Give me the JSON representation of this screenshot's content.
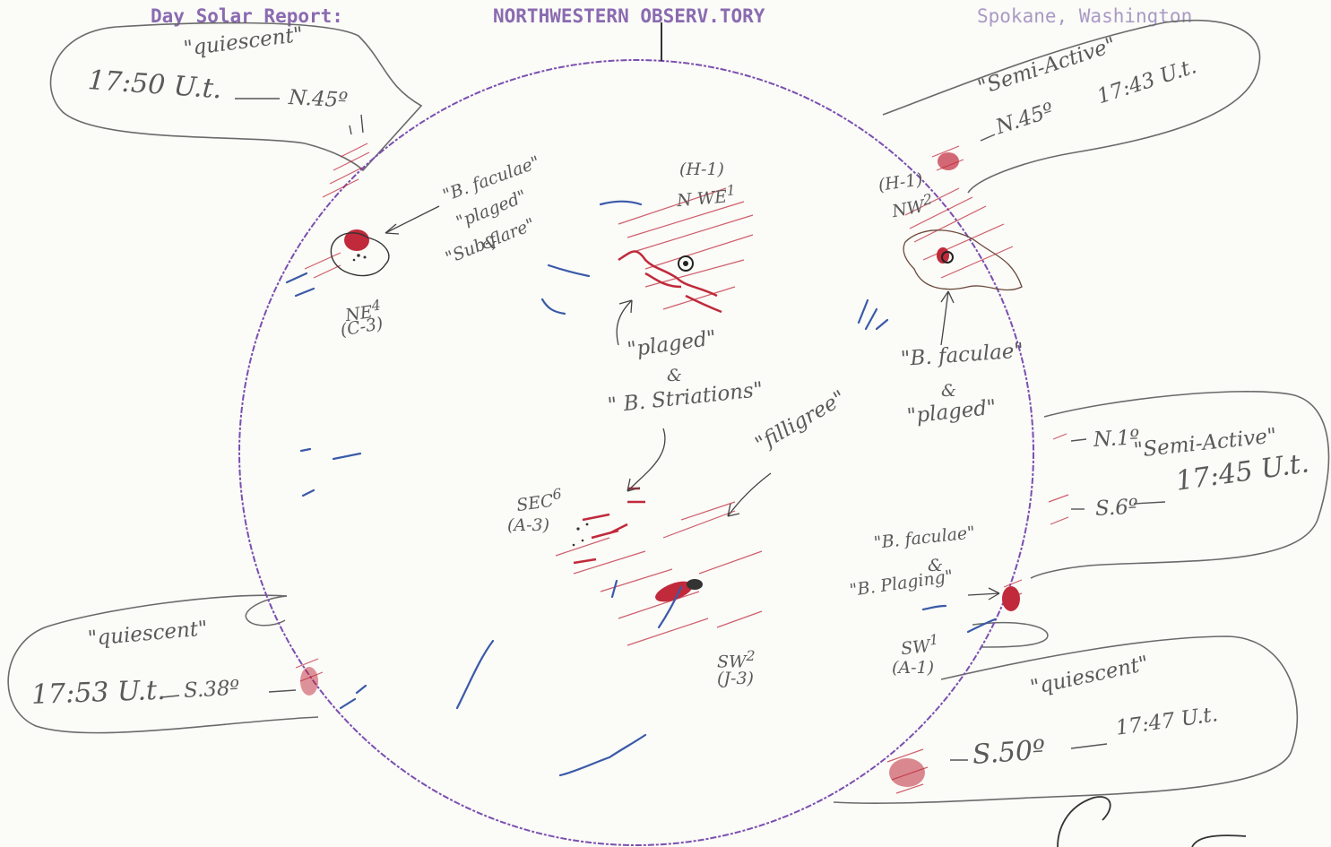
{
  "header": {
    "left": "Day Solar Report:",
    "center": "NORTHWESTERN OBSERV.TORY",
    "right": "Spokane, Washington"
  },
  "callouts": {
    "top_left": {
      "status": "\"quiescent\"",
      "time": "17:50 U.t.",
      "lat": "N.45º"
    },
    "top_right": {
      "status": "\"Semi-Active\"",
      "time": "17:43 U.t.",
      "lat": "N.45º"
    },
    "mid_right": {
      "status": "\"Semi-Active\"",
      "time": "17:45 U.t.",
      "lat_upper": "N.1º",
      "lat": "S.6º"
    },
    "bottom_left": {
      "status": "\"quiescent\"",
      "time": "17:53 U.t.",
      "lat": "S.38º"
    },
    "bottom_right": {
      "status": "\"quiescent\"",
      "time": "17:47 U.t.",
      "lat": "S.50º"
    }
  },
  "regions": {
    "ne4": {
      "label": "NE",
      "sup": "4",
      "code": "(C-3)",
      "desc1": "\"B. faculae\"",
      "desc2": "\"plaged\"",
      "desc3": "&",
      "desc4": "\"Sub-flare\""
    },
    "nwe1": {
      "code": "(H-1)",
      "label": "N WE",
      "sup": "1",
      "desc1": "\"plaged\"",
      "desc2": "&",
      "desc3": "\" B. Striations\""
    },
    "nw2": {
      "code": "(H-1)",
      "label": "NW",
      "sup": "2",
      "desc1": "\"B. faculae\"",
      "desc2": "&",
      "desc3": "\"plaged\""
    },
    "sec6": {
      "label": "SEC",
      "sup": "6",
      "code": "(A-3)"
    },
    "sw2": {
      "label": "SW",
      "sup": "2",
      "code": "(J-3)",
      "desc1": "\"filligree\""
    },
    "sw1": {
      "label": "SW",
      "sup": "1",
      "code": "(A-1)",
      "desc1": "\"B. faculae\"",
      "desc2": "&",
      "desc3": "\"B. Plaging\""
    }
  },
  "colors": {
    "plage": "#c02a3a",
    "filament": "#3a5aa8",
    "limb": "#7a4fb0",
    "ink": "#5a5a5a",
    "header": "#8a6bb0"
  }
}
